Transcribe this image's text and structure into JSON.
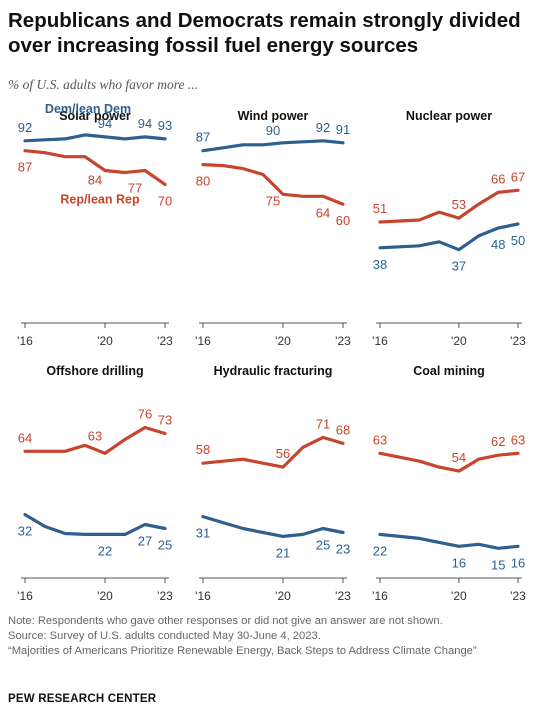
{
  "title": "Republicans and Democrats remain strongly divided over increasing fossil fuel energy sources",
  "subtitle": "% of U.S. adults who favor more ...",
  "colors": {
    "dem": "#2f5f8f",
    "rep": "#c8442c",
    "axis": "#555555"
  },
  "chart_data": [
    {
      "type": "line",
      "title": "Solar power",
      "x": [
        2016,
        2017,
        2018,
        2019,
        2020,
        2021,
        2022,
        2023
      ],
      "series": [
        {
          "name": "Dem/lean Dem",
          "party": "dem",
          "values": [
            92,
            92.5,
            93,
            95,
            94,
            93,
            94,
            93
          ]
        },
        {
          "name": "Rep/lean Rep",
          "party": "rep",
          "values": [
            87,
            86,
            84,
            84,
            77,
            76,
            77,
            70
          ]
        }
      ],
      "point_labels": [
        {
          "party": "dem",
          "text": "92",
          "x": 2016
        },
        {
          "party": "dem",
          "text": "94",
          "x": 2020
        },
        {
          "party": "dem",
          "text": "94",
          "x": 2022
        },
        {
          "party": "dem",
          "text": "93",
          "x": 2023
        },
        {
          "party": "rep",
          "text": "87",
          "x": 2016
        },
        {
          "party": "rep",
          "text": "84",
          "x": 2019.5
        },
        {
          "party": "rep",
          "text": "77",
          "x": 2021.5
        },
        {
          "party": "rep",
          "text": "70",
          "x": 2023
        }
      ],
      "series_labels": [
        {
          "party": "dem",
          "text": "Dem/lean Dem"
        },
        {
          "party": "rep",
          "text": "Rep/lean Rep"
        }
      ],
      "tick_labels": [
        "'16",
        "'20",
        "'23"
      ]
    },
    {
      "type": "line",
      "title": "Wind power",
      "x": [
        2016,
        2017,
        2018,
        2019,
        2020,
        2021,
        2022,
        2023
      ],
      "series": [
        {
          "name": "Dem/lean Dem",
          "party": "dem",
          "values": [
            87,
            88.5,
            90,
            90,
            91,
            91.5,
            92,
            91
          ]
        },
        {
          "name": "Rep/lean Rep",
          "party": "rep",
          "values": [
            80,
            79.5,
            78,
            75,
            65,
            64,
            64,
            60
          ]
        }
      ],
      "point_labels": [
        {
          "party": "dem",
          "text": "87",
          "x": 2016
        },
        {
          "party": "dem",
          "text": "90",
          "x": 2019.5
        },
        {
          "party": "dem",
          "text": "92",
          "x": 2022
        },
        {
          "party": "dem",
          "text": "91",
          "x": 2023
        },
        {
          "party": "rep",
          "text": "80",
          "x": 2016
        },
        {
          "party": "rep",
          "text": "75",
          "x": 2019.5
        },
        {
          "party": "rep",
          "text": "64",
          "x": 2022
        },
        {
          "party": "rep",
          "text": "60",
          "x": 2023
        }
      ],
      "tick_labels": [
        "'16",
        "'20",
        "'23"
      ]
    },
    {
      "type": "line",
      "title": "Nuclear power",
      "x": [
        2016,
        2017,
        2018,
        2019,
        2020,
        2021,
        2022,
        2023
      ],
      "series": [
        {
          "name": "Dem/lean Dem",
          "party": "dem",
          "values": [
            38,
            38.5,
            39,
            41,
            37,
            44,
            48,
            50
          ]
        },
        {
          "name": "Rep/lean Rep",
          "party": "rep",
          "values": [
            51,
            51.5,
            52,
            56,
            53,
            60,
            66,
            67
          ]
        }
      ],
      "point_labels": [
        {
          "party": "dem",
          "text": "38",
          "x": 2016
        },
        {
          "party": "dem",
          "text": "37",
          "x": 2020
        },
        {
          "party": "dem",
          "text": "48",
          "x": 2022
        },
        {
          "party": "dem",
          "text": "50",
          "x": 2023
        },
        {
          "party": "rep",
          "text": "51",
          "x": 2016
        },
        {
          "party": "rep",
          "text": "53",
          "x": 2020
        },
        {
          "party": "rep",
          "text": "66",
          "x": 2022
        },
        {
          "party": "rep",
          "text": "67",
          "x": 2023
        }
      ],
      "tick_labels": [
        "'16",
        "'20",
        "'23"
      ]
    },
    {
      "type": "line",
      "title": "Offshore drilling",
      "x": [
        2016,
        2017,
        2018,
        2019,
        2020,
        2021,
        2022,
        2023
      ],
      "series": [
        {
          "name": "Dem/lean Dem",
          "party": "dem",
          "values": [
            32,
            26,
            22.5,
            22,
            22,
            22,
            27,
            25
          ]
        },
        {
          "name": "Rep/lean Rep",
          "party": "rep",
          "values": [
            64,
            64,
            64,
            67,
            63,
            70,
            76,
            73
          ]
        }
      ],
      "point_labels": [
        {
          "party": "dem",
          "text": "32",
          "x": 2016
        },
        {
          "party": "dem",
          "text": "22",
          "x": 2020
        },
        {
          "party": "dem",
          "text": "27",
          "x": 2022
        },
        {
          "party": "dem",
          "text": "25",
          "x": 2023
        },
        {
          "party": "rep",
          "text": "64",
          "x": 2016
        },
        {
          "party": "rep",
          "text": "63",
          "x": 2019.5
        },
        {
          "party": "rep",
          "text": "76",
          "x": 2022
        },
        {
          "party": "rep",
          "text": "73",
          "x": 2023
        }
      ],
      "tick_labels": [
        "'16",
        "'20",
        "'23"
      ]
    },
    {
      "type": "line",
      "title": "Hydraulic fracturing",
      "x": [
        2016,
        2017,
        2018,
        2019,
        2020,
        2021,
        2022,
        2023
      ],
      "series": [
        {
          "name": "Dem/lean Dem",
          "party": "dem",
          "values": [
            31,
            28,
            25,
            23,
            21,
            22,
            25,
            23
          ]
        },
        {
          "name": "Rep/lean Rep",
          "party": "rep",
          "values": [
            58,
            59,
            60,
            58,
            56,
            66,
            71,
            68
          ]
        }
      ],
      "point_labels": [
        {
          "party": "dem",
          "text": "31",
          "x": 2016
        },
        {
          "party": "dem",
          "text": "21",
          "x": 2020
        },
        {
          "party": "dem",
          "text": "25",
          "x": 2022
        },
        {
          "party": "dem",
          "text": "23",
          "x": 2023
        },
        {
          "party": "rep",
          "text": "58",
          "x": 2016
        },
        {
          "party": "rep",
          "text": "56",
          "x": 2020
        },
        {
          "party": "rep",
          "text": "71",
          "x": 2022
        },
        {
          "party": "rep",
          "text": "68",
          "x": 2023
        }
      ],
      "tick_labels": [
        "'16",
        "'20",
        "'23"
      ]
    },
    {
      "type": "line",
      "title": "Coal mining",
      "x": [
        2016,
        2017,
        2018,
        2019,
        2020,
        2021,
        2022,
        2023
      ],
      "series": [
        {
          "name": "Dem/lean Dem",
          "party": "dem",
          "values": [
            22,
            21,
            20,
            18,
            16,
            17,
            15,
            16
          ]
        },
        {
          "name": "Rep/lean Rep",
          "party": "rep",
          "values": [
            63,
            61,
            59,
            56,
            54,
            60,
            62,
            63
          ]
        }
      ],
      "point_labels": [
        {
          "party": "dem",
          "text": "22",
          "x": 2016
        },
        {
          "party": "dem",
          "text": "16",
          "x": 2020
        },
        {
          "party": "dem",
          "text": "15",
          "x": 2022
        },
        {
          "party": "dem",
          "text": "16",
          "x": 2023
        },
        {
          "party": "rep",
          "text": "63",
          "x": 2016
        },
        {
          "party": "rep",
          "text": "54",
          "x": 2020
        },
        {
          "party": "rep",
          "text": "62",
          "x": 2022
        },
        {
          "party": "rep",
          "text": "63",
          "x": 2023
        }
      ],
      "tick_labels": [
        "'16",
        "'20",
        "'23"
      ]
    }
  ],
  "notes": {
    "note": "Note: Respondents who gave other responses or did not give an answer are not shown.",
    "source": "Source: Survey of U.S. adults conducted May 30-June 4, 2023.",
    "report": "“Majorities of Americans Prioritize Renewable Energy, Back Steps to Address Climate Change”"
  },
  "brand": "PEW RESEARCH CENTER"
}
